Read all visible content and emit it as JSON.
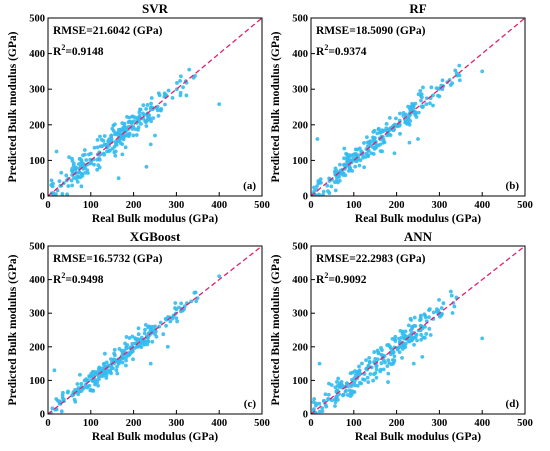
{
  "chart_data": [
    {
      "type": "scatter",
      "panel": "(a)",
      "title": "SVR",
      "rmse_text": "RMSE=21.6042 (GPa)",
      "r2_prefix": "R",
      "r2_exp": "2",
      "r2_value": "=0.9148",
      "xlabel": "Real Bulk modulus (GPa)",
      "ylabel": "Predicted Bulk modulus (GPa)",
      "xlim": [
        0,
        500
      ],
      "ylim": [
        0,
        500
      ],
      "xticks": [
        0,
        100,
        200,
        300,
        400,
        500
      ],
      "yticks": [
        0,
        100,
        200,
        300,
        400,
        500
      ],
      "reference_line": "y=x",
      "point_color": "#33bbee",
      "line_color": "#e0206e",
      "seed": 11,
      "noise": 20,
      "points": 260,
      "outliers": [
        [
          400,
          258
        ],
        [
          330,
          355
        ],
        [
          250,
          170
        ],
        [
          230,
          82
        ],
        [
          165,
          50
        ],
        [
          20,
          125
        ],
        [
          310,
          290
        ],
        [
          240,
          145
        ]
      ]
    },
    {
      "type": "scatter",
      "panel": "(b)",
      "title": "RF",
      "rmse_text": "RMSE=18.5090 (GPa)",
      "r2_prefix": "R",
      "r2_exp": "2",
      "r2_value": "=0.9374",
      "xlabel": "Real Bulk modulus (GPa)",
      "ylabel": "Predicted Bulk modulus (GPa)",
      "xlim": [
        0,
        500
      ],
      "ylim": [
        0,
        500
      ],
      "xticks": [
        0,
        100,
        200,
        300,
        400,
        500
      ],
      "yticks": [
        0,
        100,
        200,
        300,
        400,
        500
      ],
      "reference_line": "y=x",
      "point_color": "#33bbee",
      "line_color": "#e0206e",
      "seed": 23,
      "noise": 17,
      "points": 260,
      "outliers": [
        [
          400,
          350
        ],
        [
          340,
          345
        ],
        [
          15,
          160
        ],
        [
          250,
          160
        ],
        [
          230,
          150
        ],
        [
          300,
          280
        ],
        [
          195,
          120
        ]
      ]
    },
    {
      "type": "scatter",
      "panel": "(c)",
      "title": "XGBoost",
      "rmse_text": "RMSE=16.5732 (GPa)",
      "r2_prefix": "R",
      "r2_exp": "2",
      "r2_value": "=0.9498",
      "xlabel": "Real Bulk modulus (GPa)",
      "ylabel": "Predicted Bulk modulus (GPa)",
      "xlim": [
        0,
        500
      ],
      "ylim": [
        0,
        500
      ],
      "xticks": [
        0,
        100,
        200,
        300,
        400,
        500
      ],
      "yticks": [
        0,
        100,
        200,
        300,
        400,
        500
      ],
      "reference_line": "y=x",
      "point_color": "#33bbee",
      "line_color": "#e0206e",
      "seed": 37,
      "noise": 15,
      "points": 260,
      "outliers": [
        [
          400,
          410
        ],
        [
          345,
          362
        ],
        [
          15,
          130
        ],
        [
          240,
          150
        ],
        [
          300,
          285
        ],
        [
          280,
          200
        ]
      ]
    },
    {
      "type": "scatter",
      "panel": "(d)",
      "title": "ANN",
      "rmse_text": "RMSE=22.2983 (GPa)",
      "r2_prefix": "R",
      "r2_exp": "2",
      "r2_value": "=0.9092",
      "xlabel": "Real Bulk modulus (GPa)",
      "ylabel": "Predicted Bulk modulus (GPa)",
      "xlim": [
        0,
        500
      ],
      "ylim": [
        0,
        500
      ],
      "xticks": [
        0,
        100,
        200,
        300,
        400,
        500
      ],
      "yticks": [
        0,
        100,
        200,
        300,
        400,
        500
      ],
      "reference_line": "y=x",
      "point_color": "#33bbee",
      "line_color": "#e0206e",
      "seed": 53,
      "noise": 21,
      "points": 260,
      "outliers": [
        [
          400,
          225
        ],
        [
          335,
          320
        ],
        [
          20,
          150
        ],
        [
          260,
          170
        ],
        [
          240,
          150
        ],
        [
          180,
          95
        ],
        [
          300,
          300
        ],
        [
          260,
          255
        ]
      ]
    }
  ]
}
